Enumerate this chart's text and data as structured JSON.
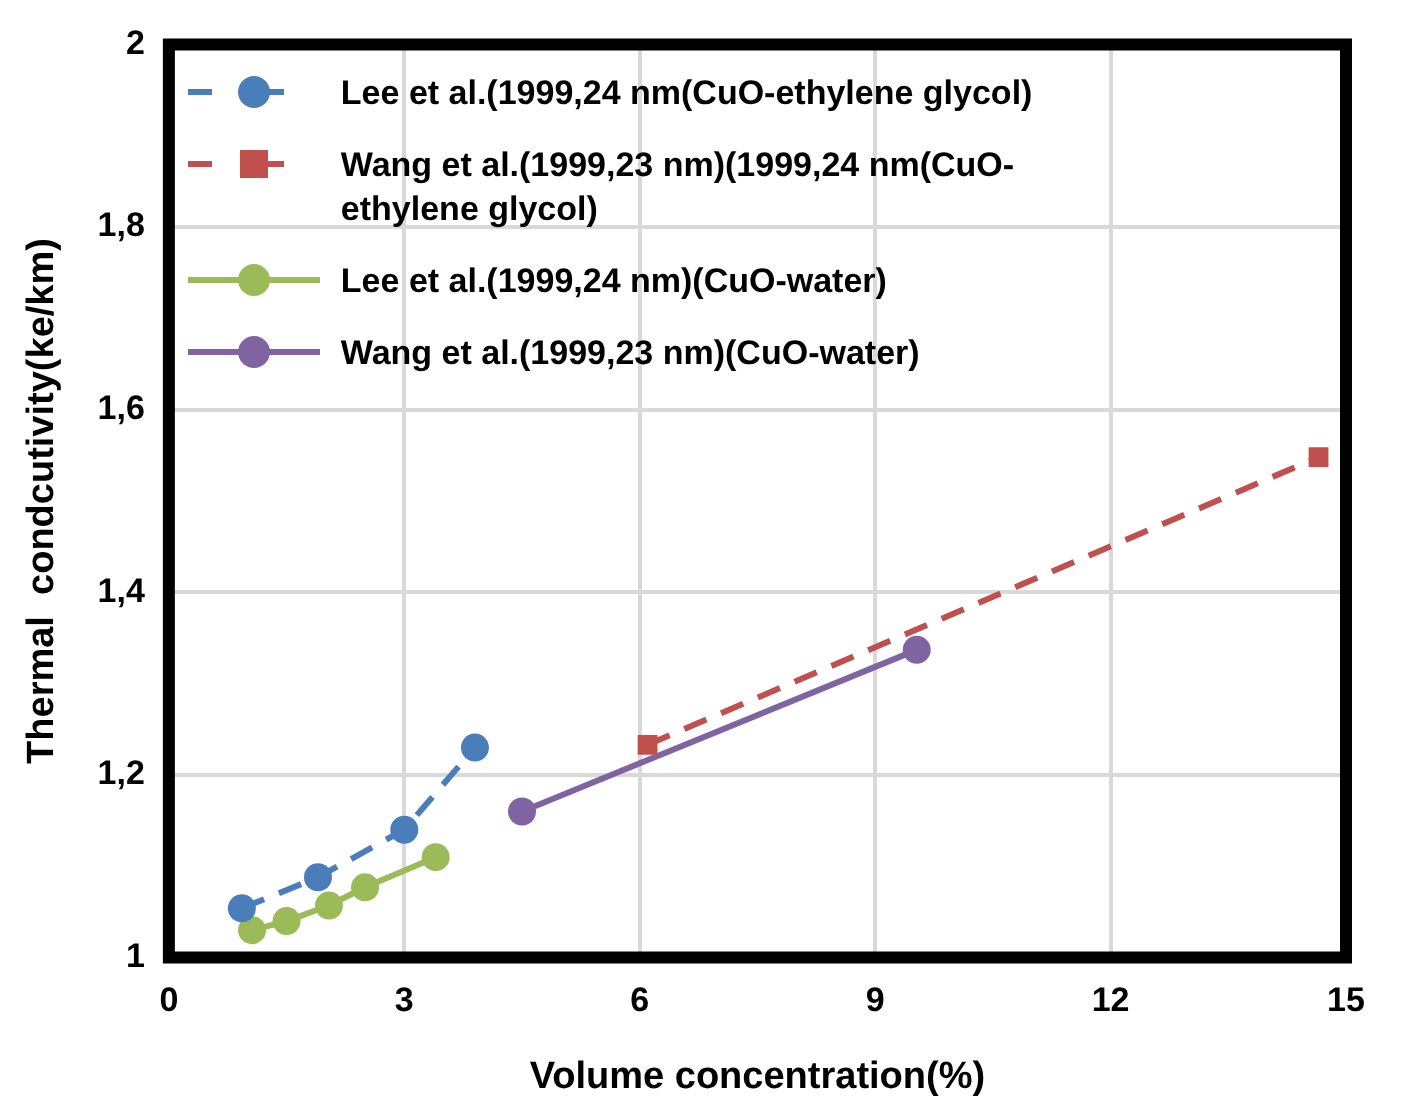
{
  "chart_data": {
    "type": "line",
    "xlabel": "Volume concentration(%)",
    "ylabel": "Thermal  condcutivity(ke/km)",
    "xlim": [
      0,
      15
    ],
    "xticks": [
      0,
      3,
      6,
      9,
      12,
      15
    ],
    "ylim": [
      1,
      2
    ],
    "yticks": [
      1,
      {
        "value": 1.2,
        "label": "1,2"
      },
      {
        "value": 1.4,
        "label": "1,4"
      },
      {
        "value": 1.6,
        "label": "1,6"
      },
      {
        "value": 1.8,
        "label": "1,8"
      },
      2
    ],
    "grid": true,
    "legend": "top left",
    "series": [
      {
        "name": "Lee et al.(1999,24 nm(CuO-ethylene glycol)",
        "color": "#4a7ebb",
        "marker": "circle",
        "line_style": "dashed",
        "x": [
          0.93,
          1.9,
          3.0,
          3.9
        ],
        "values": [
          1.054,
          1.088,
          1.14,
          1.23
        ]
      },
      {
        "name": "Wang et al.(1999,23 nm)(1999,24 nm(CuO-ethylene glycol)",
        "color": "#c0504d",
        "marker": "square",
        "line_style": "dashed",
        "x": [
          6.1,
          14.65
        ],
        "values": [
          1.233,
          1.548
        ]
      },
      {
        "name": "Lee et al.(1999,24 nm)(CuO-water)",
        "color": "#9bbb59",
        "marker": "circle",
        "line_style": "solid",
        "x": [
          1.06,
          1.5,
          2.04,
          2.5,
          3.4
        ],
        "values": [
          1.03,
          1.04,
          1.057,
          1.077,
          1.11
        ]
      },
      {
        "name": "Wang et al.(1999,23 nm)(CuO-water)",
        "color": "#8064a2",
        "marker": "circle",
        "line_style": "solid",
        "x": [
          4.5,
          9.53
        ],
        "values": [
          1.16,
          1.337
        ]
      }
    ]
  }
}
